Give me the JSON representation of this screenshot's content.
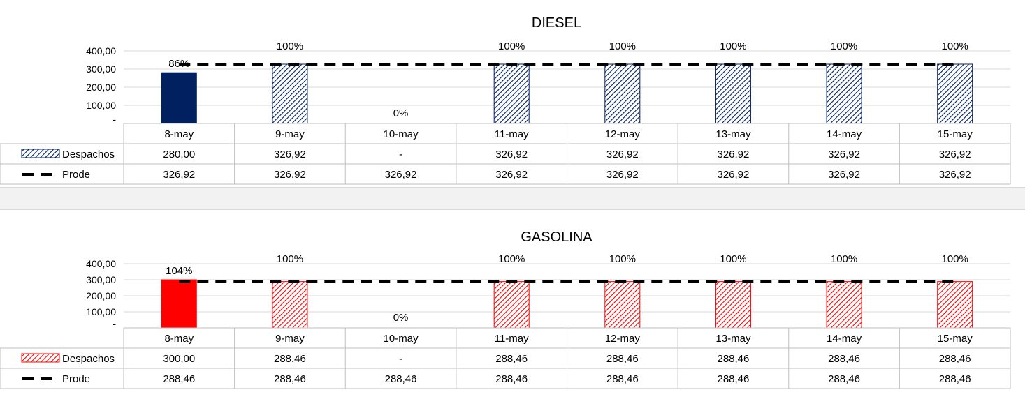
{
  "chart_data": [
    {
      "type": "bar",
      "title": "DIESEL",
      "categories": [
        "8-may",
        "9-may",
        "10-may",
        "11-may",
        "12-may",
        "13-may",
        "14-may",
        "15-may"
      ],
      "ylim": [
        0,
        400
      ],
      "yticks": [
        "-",
        "100,00",
        "200,00",
        "300,00",
        "400,00"
      ],
      "grid": true,
      "legend": "data-table",
      "colors": {
        "solid": "#002060",
        "hatch": "#002060"
      },
      "series": [
        {
          "name": "Despachos",
          "kind": "bar",
          "values": [
            280.0,
            326.92,
            0,
            326.92,
            326.92,
            326.92,
            326.92,
            326.92
          ],
          "labels": [
            "280,00",
            "326,92",
            "-",
            "326,92",
            "326,92",
            "326,92",
            "326,92",
            "326,92"
          ],
          "pct_labels": [
            "86%",
            "100%",
            "0%",
            "100%",
            "100%",
            "100%",
            "100%",
            "100%"
          ]
        },
        {
          "name": "Prode",
          "kind": "line-dashed",
          "values": [
            326.92,
            326.92,
            326.92,
            326.92,
            326.92,
            326.92,
            326.92,
            326.92
          ],
          "labels": [
            "326,92",
            "326,92",
            "326,92",
            "326,92",
            "326,92",
            "326,92",
            "326,92",
            "326,92"
          ]
        }
      ]
    },
    {
      "type": "bar",
      "title": "GASOLINA",
      "categories": [
        "8-may",
        "9-may",
        "10-may",
        "11-may",
        "12-may",
        "13-may",
        "14-may",
        "15-may"
      ],
      "ylim": [
        0,
        400
      ],
      "yticks": [
        "-",
        "100,00",
        "200,00",
        "300,00",
        "400,00"
      ],
      "grid": true,
      "legend": "data-table",
      "colors": {
        "solid": "#ff0000",
        "hatch": "#ff0000"
      },
      "series": [
        {
          "name": "Despachos",
          "kind": "bar",
          "values": [
            300.0,
            288.46,
            0,
            288.46,
            288.46,
            288.46,
            288.46,
            288.46
          ],
          "labels": [
            "300,00",
            "288,46",
            "-",
            "288,46",
            "288,46",
            "288,46",
            "288,46",
            "288,46"
          ],
          "pct_labels": [
            "104%",
            "100%",
            "0%",
            "100%",
            "100%",
            "100%",
            "100%",
            "100%"
          ]
        },
        {
          "name": "Prode",
          "kind": "line-dashed",
          "values": [
            288.46,
            288.46,
            288.46,
            288.46,
            288.46,
            288.46,
            288.46,
            288.46
          ],
          "labels": [
            "288,46",
            "288,46",
            "288,46",
            "288,46",
            "288,46",
            "288,46",
            "288,46",
            "288,46"
          ]
        }
      ]
    }
  ]
}
